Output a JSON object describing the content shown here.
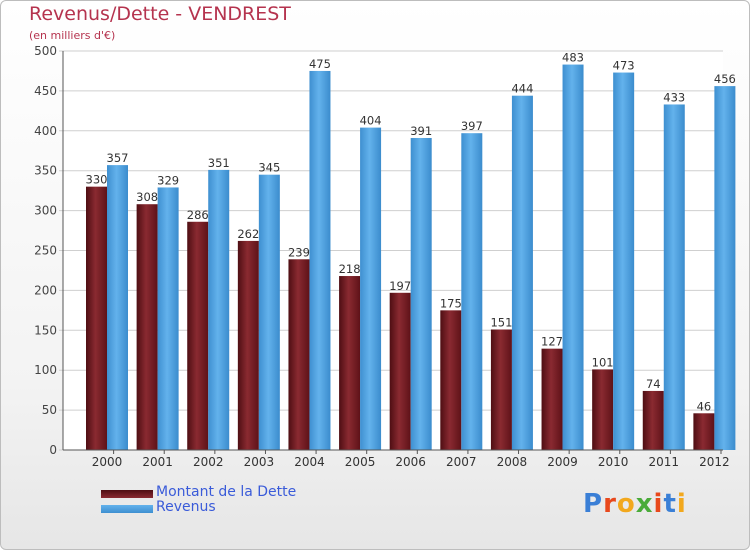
{
  "header": {
    "title": "Revenus/Dette - VENDREST",
    "subtitle": "(en milliers d'€)"
  },
  "legend": {
    "debt_label": "Montant de la Dette",
    "revenue_label": "Revenus"
  },
  "logo": {
    "text": "Proxiti"
  },
  "colors": {
    "debt": "#7a1c22",
    "revenue": "#4fa3e0",
    "title": "#b5334e"
  },
  "chart_data": {
    "type": "bar",
    "categories": [
      "2000",
      "2001",
      "2002",
      "2003",
      "2004",
      "2005",
      "2006",
      "2007",
      "2008",
      "2009",
      "2010",
      "2011",
      "2012"
    ],
    "series": [
      {
        "name": "Montant de la Dette",
        "values": [
          330,
          308,
          286,
          262,
          239,
          218,
          197,
          175,
          151,
          127,
          101,
          74,
          46
        ]
      },
      {
        "name": "Revenus",
        "values": [
          357,
          329,
          351,
          345,
          475,
          404,
          391,
          397,
          444,
          483,
          473,
          433,
          456
        ]
      }
    ],
    "ylim": [
      0,
      500
    ],
    "yticks": [
      0,
      50,
      100,
      150,
      200,
      250,
      300,
      350,
      400,
      450,
      500
    ],
    "grid": true,
    "legend_position": "bottom-left"
  }
}
